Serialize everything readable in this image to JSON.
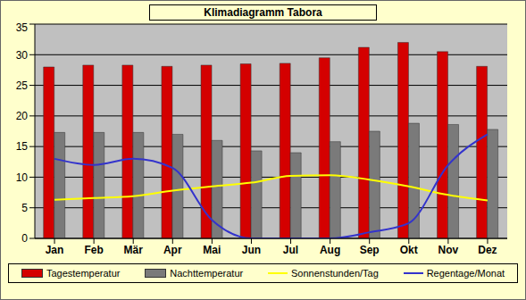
{
  "chart_data": {
    "type": "bar",
    "title": "Klimadiagramm Tabora",
    "categories": [
      "Jan",
      "Feb",
      "Mär",
      "Apr",
      "Mai",
      "Jun",
      "Jul",
      "Aug",
      "Sep",
      "Okt",
      "Nov",
      "Dez"
    ],
    "series": [
      {
        "name": "Tagestemperatur",
        "type": "bar",
        "color": "#d40000",
        "values": [
          28,
          28.3,
          28.3,
          28.1,
          28.3,
          28.5,
          28.6,
          29.5,
          31.2,
          32,
          30.5,
          28.1
        ]
      },
      {
        "name": "Nachttemperatur",
        "type": "bar",
        "color": "#7a7a7a",
        "values": [
          17.3,
          17.3,
          17.3,
          17,
          16,
          14.3,
          14,
          15.8,
          17.5,
          18.8,
          18.6,
          17.8
        ]
      },
      {
        "name": "Sonnenstunden/Tag",
        "type": "line",
        "marker": "none",
        "color": "#ffff00",
        "values": [
          6.3,
          6.6,
          6.9,
          7.8,
          8.5,
          9.1,
          10.2,
          10.3,
          9.6,
          8.5,
          7.1,
          6.2
        ]
      },
      {
        "name": "Regentage/Monat",
        "type": "line",
        "marker": "none",
        "color": "#3333cc",
        "values": [
          13,
          12,
          13,
          11.5,
          3,
          0,
          0,
          0,
          1,
          2.5,
          12,
          17
        ]
      }
    ],
    "ylim": [
      0,
      35
    ],
    "yticks": [
      0,
      5,
      10,
      15,
      20,
      25,
      30,
      35
    ],
    "grid": true,
    "legend": "bottom"
  }
}
